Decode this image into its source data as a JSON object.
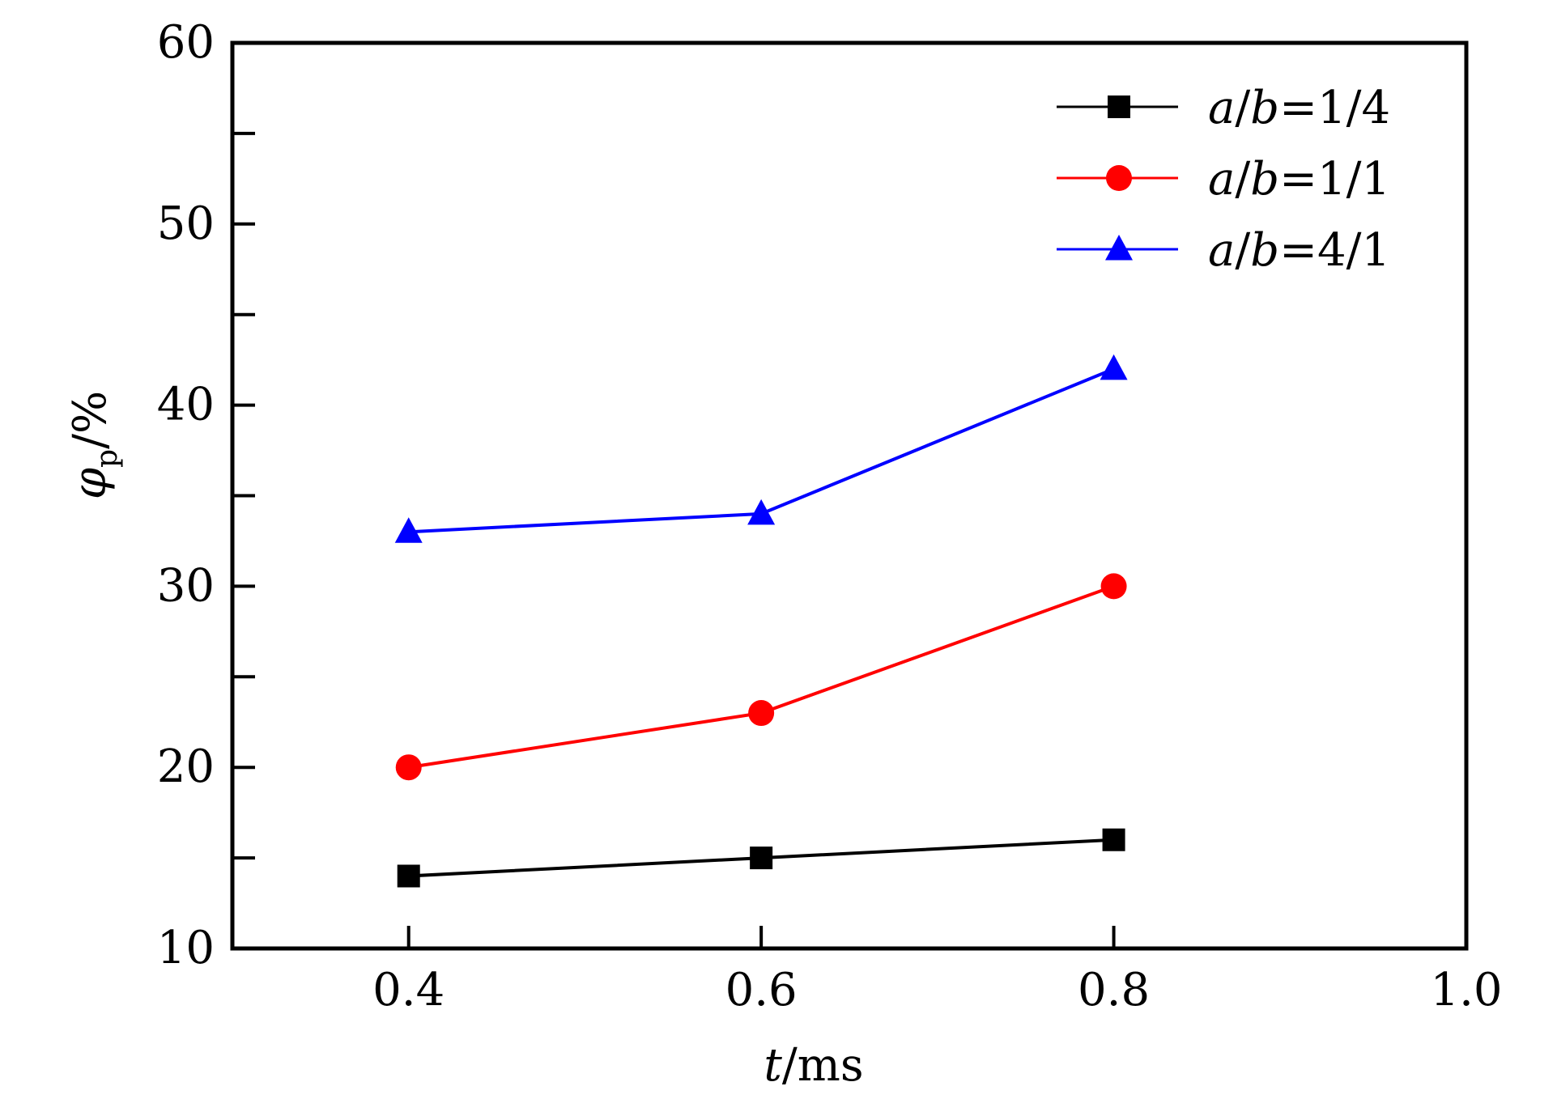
{
  "chart_data": {
    "type": "line",
    "x": [
      0.4,
      0.6,
      0.8
    ],
    "series": [
      {
        "name": "a/b=1/4",
        "values": [
          14,
          15,
          16
        ],
        "color": "#000000",
        "marker": "square"
      },
      {
        "name": "a/b=1/1",
        "values": [
          20,
          23,
          30
        ],
        "color": "#ff0000",
        "marker": "circle"
      },
      {
        "name": "a/b=4/1",
        "values": [
          33,
          34,
          42
        ],
        "color": "#0000ff",
        "marker": "triangle"
      }
    ],
    "xlabel": {
      "var": "t",
      "unit": "/ms"
    },
    "ylabel": {
      "var": "φ",
      "sub": "p",
      "unit": "/%"
    },
    "xlim": [
      0.3,
      1.0
    ],
    "ylim": [
      10,
      60
    ],
    "xticks": [
      {
        "value": 0.4,
        "label": "0.4"
      },
      {
        "value": 0.6,
        "label": "0.6"
      },
      {
        "value": 0.8,
        "label": "0.8"
      },
      {
        "value": 1.0,
        "label": "1.0"
      }
    ],
    "yticks": [
      {
        "value": 10,
        "label": "10"
      },
      {
        "value": 20,
        "label": "20"
      },
      {
        "value": 30,
        "label": "30"
      },
      {
        "value": 40,
        "label": "40"
      },
      {
        "value": 50,
        "label": "50"
      },
      {
        "value": 60,
        "label": "60"
      }
    ],
    "yminor": [
      15,
      25,
      35,
      45,
      55
    ],
    "grid": false,
    "legend": {
      "position": "top-right",
      "entries": [
        {
          "var1": "a",
          "sep": "/",
          "var2": "b",
          "rest": "=1/4"
        },
        {
          "var1": "a",
          "sep": "/",
          "var2": "b",
          "rest": "=1/1"
        },
        {
          "var1": "a",
          "sep": "/",
          "var2": "b",
          "rest": "=4/1"
        }
      ]
    }
  }
}
